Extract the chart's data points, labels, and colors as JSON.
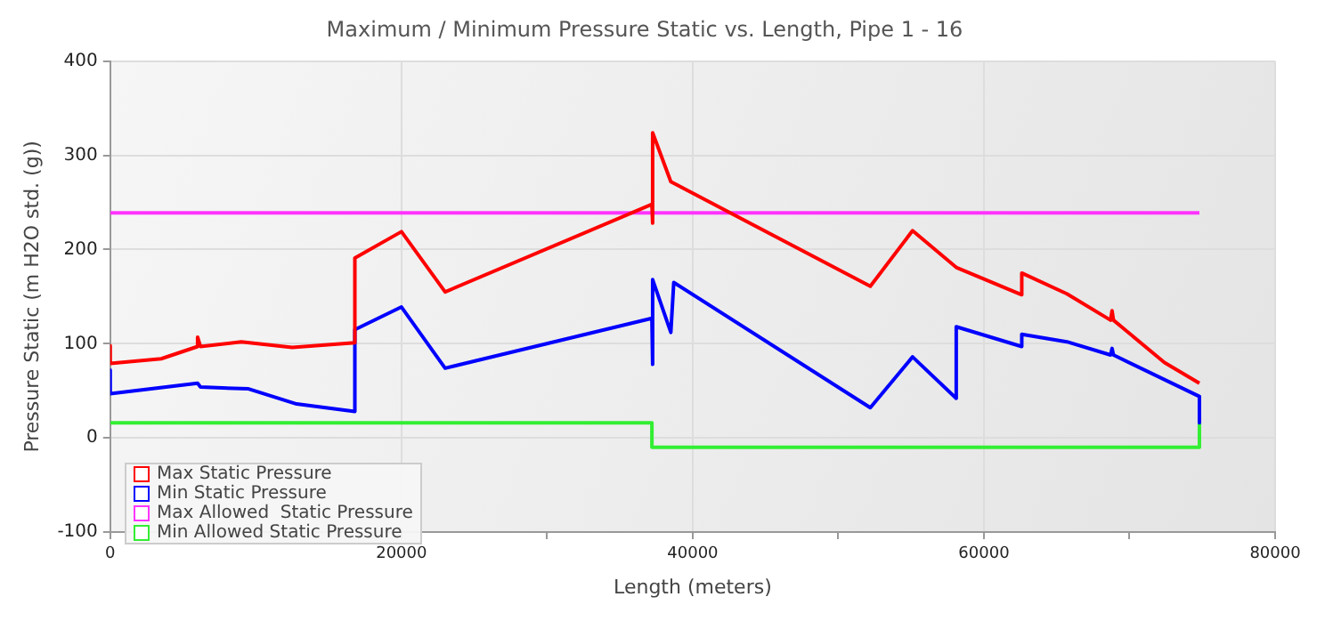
{
  "chart_data": {
    "type": "line",
    "title": "Maximum / Minimum Pressure Static vs. Length, Pipe 1 - 16",
    "xlabel": "Length (meters)",
    "ylabel": "Pressure Static (m H2O std. (g))",
    "series": [
      {
        "name": "Max Static Pressure",
        "color": "#ff0000",
        "x": [
          0,
          0,
          3500,
          6000,
          6000,
          6200,
          9000,
          12500,
          16800,
          16800,
          20000,
          23000,
          37200,
          37200,
          37300,
          38500,
          52200,
          55100,
          58100,
          62600,
          62600,
          65700,
          68700,
          68800,
          68900,
          72400,
          74800
        ],
        "values": [
          98,
          79,
          84,
          97,
          107,
          97,
          102,
          96,
          101,
          191,
          219,
          155,
          248,
          228,
          324,
          272,
          161,
          220,
          181,
          152,
          175,
          153,
          125,
          135,
          125,
          80,
          58
        ]
      },
      {
        "name": "Min Static Pressure",
        "color": "#0000ff",
        "x": [
          0,
          0,
          6000,
          6200,
          9500,
          12800,
          16800,
          16800,
          20000,
          23000,
          37200,
          37200,
          37300,
          38500,
          38700,
          52200,
          55100,
          58100,
          58100,
          62600,
          62600,
          65700,
          68700,
          68800,
          68900,
          74800,
          74800
        ],
        "values": [
          72,
          47,
          58,
          54,
          52,
          36,
          28,
          115,
          139,
          74,
          127,
          78,
          168,
          112,
          165,
          32,
          86,
          42,
          118,
          97,
          110,
          102,
          88,
          95,
          88,
          44,
          16
        ]
      },
      {
        "name": "Max Allowed  Static Pressure",
        "color": "#ff33ff",
        "x": [
          0,
          74800
        ],
        "values": [
          239,
          239
        ]
      },
      {
        "name": "Min Allowed Static Pressure",
        "color": "#33ee33",
        "x": [
          0,
          37200,
          37200,
          74800,
          74800
        ],
        "values": [
          16,
          16,
          -10,
          -10,
          16
        ]
      }
    ],
    "xlim": [
      0,
      80000
    ],
    "xticks": [
      0,
      {
        "value": 10000,
        "label": null
      },
      20000,
      {
        "value": 30000,
        "label": null
      },
      40000,
      {
        "value": 50000,
        "label": null
      },
      60000,
      {
        "value": 70000,
        "label": null
      },
      80000
    ],
    "ylim": [
      -100,
      400
    ],
    "yticks": [
      -100,
      0,
      100,
      200,
      300,
      400
    ],
    "grid": true,
    "legend": "bottom left",
    "marker": "none",
    "line_style": "solid"
  }
}
